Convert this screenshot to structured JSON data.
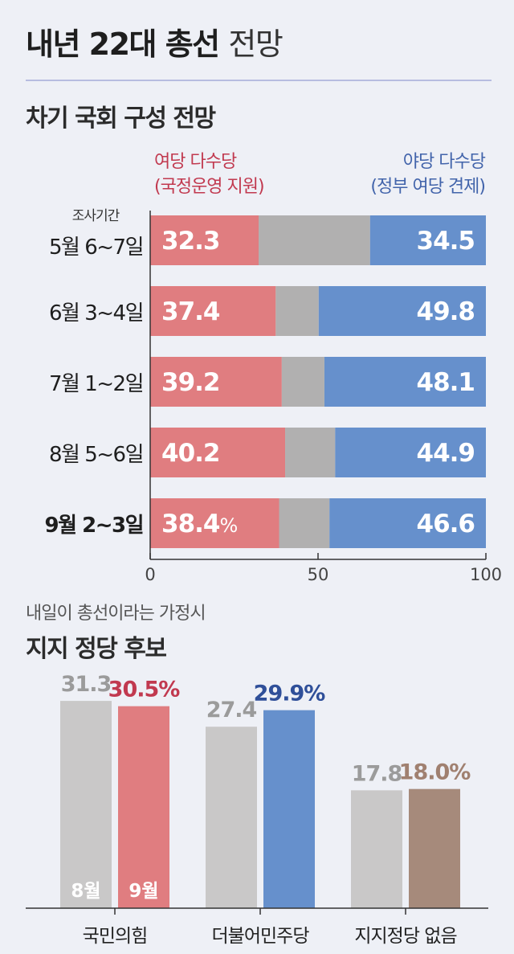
{
  "header": {
    "title_bold": "내년 22대 총선",
    "title_light": "전망"
  },
  "section1": {
    "title": "차기 국회 구성 전망",
    "period_caption": "조사기간"
  },
  "section2": {
    "subtitle": "내일이 총선이라는 가정시",
    "title": "지지 정당 후보"
  },
  "chart_data": [
    {
      "type": "bar",
      "orientation": "horizontal",
      "stacked": true,
      "title": "차기 국회 구성 전망",
      "categories": [
        "5월 6~7일",
        "6월 3~4일",
        "7월 1~2일",
        "8월 5~6일",
        "9월 2~3일"
      ],
      "series": [
        {
          "name": "여당 다수당 (국정운영 지원)",
          "values": [
            32.3,
            37.4,
            39.2,
            40.2,
            38.4
          ],
          "color": "#e07d80"
        },
        {
          "name": "",
          "values": [
            33.2,
            12.8,
            12.7,
            14.9,
            15.0
          ],
          "color": "#b1b0b0"
        },
        {
          "name": "야당 다수당 (정부 여당 견제)",
          "values": [
            34.5,
            49.8,
            48.1,
            44.9,
            46.6
          ],
          "color": "#6690cc"
        }
      ],
      "legend_left": [
        "여당 다수당",
        "(국정운영 지원)"
      ],
      "legend_right": [
        "야당 다수당",
        "(정부 여당 견제)"
      ],
      "left_labels": [
        "32.3",
        "37.4",
        "39.2",
        "40.2",
        "38.4"
      ],
      "right_labels": [
        "34.5",
        "49.8",
        "48.1",
        "44.9",
        "46.6"
      ],
      "unit": "%",
      "xticks": [
        "0",
        "50",
        "100"
      ],
      "xlim": [
        0,
        100
      ],
      "bold_category_index": 4
    },
    {
      "type": "bar",
      "title": "지지 정당 후보",
      "subtitle": "내일이 총선이라는 가정시",
      "categories": [
        "국민의힘",
        "더불어민주당",
        "지지정당 없음"
      ],
      "series": [
        {
          "name": "8월",
          "values": [
            31.3,
            27.4,
            17.8
          ],
          "colors": [
            "#c9c8c8",
            "#c9c8c8",
            "#c9c8c8"
          ]
        },
        {
          "name": "9월",
          "values": [
            30.5,
            29.9,
            18.0
          ],
          "colors": [
            "#e07d80",
            "#6690cc",
            "#a68a7b"
          ]
        }
      ],
      "labels_aug": [
        "31.3",
        "27.4",
        "17.8"
      ],
      "labels_sep": [
        "30.5%",
        "29.9%",
        "18.0%"
      ],
      "label_colors_sep": [
        "#c1394f",
        "#2f4f99",
        "#a08070"
      ],
      "label_color_aug": "#9b9b9b"
    }
  ]
}
